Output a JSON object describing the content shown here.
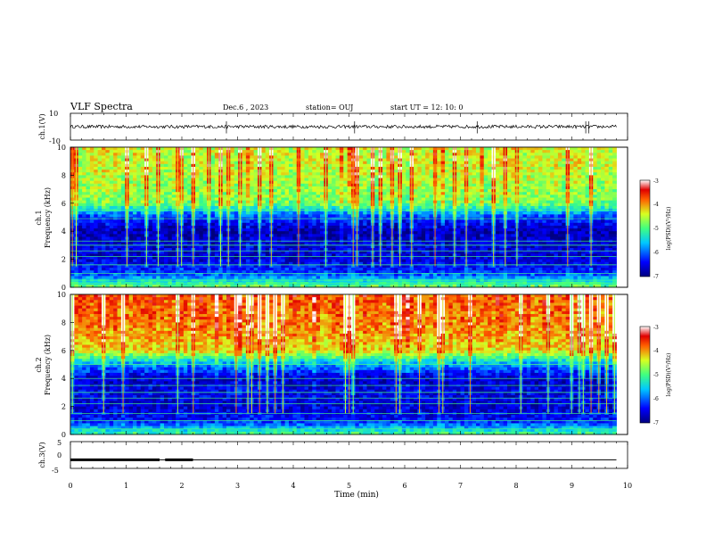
{
  "header": {
    "title": "VLF Spectra",
    "date": "Dec.6  , 2023",
    "station": "station= OUJ",
    "start": "start  UT  =   12: 10: 0"
  },
  "chart_data": [
    {
      "type": "line",
      "name": "ch1-waveform",
      "ylabel": "ch.1(V)",
      "ylim": [
        -10,
        10
      ],
      "yticks": [
        "10",
        "-10"
      ],
      "xlim": [
        0,
        10
      ],
      "baseline": 0,
      "noise_amplitude": 1.2,
      "spikes_min": [
        2.8,
        5.1,
        7.3,
        9.25,
        9.3
      ]
    },
    {
      "type": "heatmap",
      "name": "ch1-spectrogram",
      "ylabel": "ch.1\nFrequency (kHz)",
      "ylim": [
        0,
        10
      ],
      "yticks": [
        "0",
        "2",
        "4",
        "6",
        "8",
        "10"
      ],
      "xlim": [
        0,
        9.8
      ],
      "colorbar": {
        "label": "log(PSD)(V²/Hz)",
        "range": [
          -7,
          -3
        ],
        "ticks": [
          "-3",
          "-4",
          "-5",
          "-6",
          "-7"
        ]
      },
      "intensity_profile": [
        {
          "f": 0,
          "level": 0.55
        },
        {
          "f": 1,
          "level": 0.2
        },
        {
          "f": 2,
          "level": 0.1
        },
        {
          "f": 3,
          "level": 0.1
        },
        {
          "f": 4,
          "level": 0.05
        },
        {
          "f": 5,
          "level": 0.2
        },
        {
          "f": 6,
          "level": 0.55
        },
        {
          "f": 8,
          "level": 0.62
        },
        {
          "f": 10,
          "level": 0.65
        }
      ],
      "tone_lines_khz": [
        0.3,
        0.5,
        1.0,
        1.6,
        2.2,
        2.6,
        3.0,
        3.3,
        4.9,
        5.5
      ]
    },
    {
      "type": "heatmap",
      "name": "ch2-spectrogram",
      "ylabel": "ch.2\nFrequency (kHz)",
      "ylim": [
        0,
        10
      ],
      "yticks": [
        "0",
        "2",
        "4",
        "6",
        "8",
        "10"
      ],
      "xlim": [
        0,
        9.8
      ],
      "colorbar": {
        "label": "log(PSD)(V²/Hz)",
        "range": [
          -7,
          -3
        ],
        "ticks": [
          "-3",
          "-4",
          "-5",
          "-6",
          "-7"
        ]
      },
      "intensity_profile": [
        {
          "f": 0,
          "level": 0.5
        },
        {
          "f": 1,
          "level": 0.15
        },
        {
          "f": 2,
          "level": 0.1
        },
        {
          "f": 3,
          "level": 0.12
        },
        {
          "f": 4,
          "level": 0.08
        },
        {
          "f": 5,
          "level": 0.3
        },
        {
          "f": 6,
          "level": 0.68
        },
        {
          "f": 8,
          "level": 0.78
        },
        {
          "f": 10,
          "level": 0.82
        }
      ],
      "tone_lines_khz": [
        0.4,
        1.0,
        1.5,
        2.2,
        2.6,
        3.0,
        3.5,
        4.0,
        5.0
      ]
    },
    {
      "type": "line",
      "name": "ch3-waveform",
      "ylabel": "ch.3(V)",
      "ylim": [
        -5,
        5
      ],
      "yticks": [
        "5",
        "0",
        "-5"
      ],
      "xlim": [
        0,
        10
      ],
      "xlabel": "Time (min)",
      "xticks": [
        "0",
        "1",
        "2",
        "3",
        "4",
        "5",
        "6",
        "7",
        "8",
        "9",
        "10"
      ],
      "level": -1.8,
      "thick_segments_min": [
        [
          0,
          1.6
        ],
        [
          1.7,
          2.2
        ]
      ]
    }
  ]
}
